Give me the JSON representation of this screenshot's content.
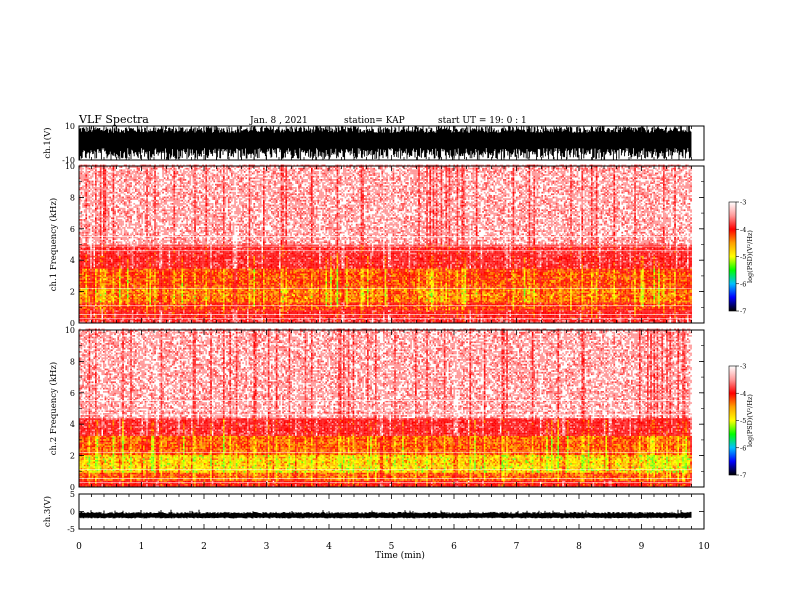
{
  "header": {
    "title": "VLF Spectra",
    "date": "Jan. 8 , 2021",
    "station": "station= KAP",
    "start": "start UT = 19: 0 : 1"
  },
  "colorbar": {
    "label": "log(PSD)(V²/Hz)",
    "ticks": [
      "-3",
      "-4",
      "-5",
      "-6",
      "-7"
    ],
    "colors": [
      "#ffffff",
      "#ff9a9a",
      "#ff0000",
      "#ffa000",
      "#ffff00",
      "#00ff00",
      "#00c0ff",
      "#0000ff",
      "#000000"
    ]
  },
  "chart_data": [
    {
      "type": "line",
      "name": "ch1-waveform",
      "ylabel": "ch.1(V)",
      "ylim": [
        -10,
        10
      ],
      "yticks": [
        "10",
        "-10"
      ],
      "x_range": [
        0,
        9.8
      ],
      "description_values": "dense broadband noise nearly filling ±10 V"
    },
    {
      "type": "heatmap",
      "name": "ch1-spectrogram",
      "ylabel": "ch.1 Frequency (kHz)",
      "ylim": [
        0,
        10
      ],
      "yticks": [
        "0",
        "2",
        "4",
        "6",
        "8",
        "10"
      ],
      "xlim": [
        0,
        9.8
      ],
      "bands": [
        {
          "from": 0.0,
          "to": 0.3,
          "level": -3.5
        },
        {
          "from": 0.3,
          "to": 0.8,
          "level": -3.7
        },
        {
          "from": 0.8,
          "to": 1.3,
          "level": -4.0
        },
        {
          "from": 1.3,
          "to": 2.2,
          "level": -4.3
        },
        {
          "from": 2.2,
          "to": 3.4,
          "level": -4.1
        },
        {
          "from": 3.4,
          "to": 4.9,
          "level": -3.6
        },
        {
          "from": 4.9,
          "to": 10.0,
          "level": -3.1
        }
      ]
    },
    {
      "type": "heatmap",
      "name": "ch2-spectrogram",
      "ylabel": "ch.2 Frequency (kHz)",
      "ylim": [
        0,
        10
      ],
      "yticks": [
        "0",
        "2",
        "4",
        "6",
        "8",
        "10"
      ],
      "xlim": [
        0,
        9.8
      ],
      "bands": [
        {
          "from": 0.0,
          "to": 0.4,
          "level": -3.8
        },
        {
          "from": 0.4,
          "to": 0.9,
          "level": -4.2
        },
        {
          "from": 0.9,
          "to": 2.0,
          "level": -4.6
        },
        {
          "from": 2.0,
          "to": 3.2,
          "level": -4.2
        },
        {
          "from": 3.2,
          "to": 4.3,
          "level": -3.6
        },
        {
          "from": 4.3,
          "to": 10.0,
          "level": -3.1
        }
      ]
    },
    {
      "type": "line",
      "name": "ch3-waveform",
      "ylabel": "ch.3(V)",
      "ylim": [
        -5,
        5
      ],
      "yticks": [
        "5",
        "0",
        "-5"
      ],
      "x_range": [
        0,
        9.8
      ],
      "description_values": "narrow band around -1 V"
    }
  ],
  "xaxis": {
    "label": "Time (min)",
    "ticks": [
      "0",
      "1",
      "2",
      "3",
      "4",
      "5",
      "6",
      "7",
      "8",
      "9",
      "10"
    ],
    "xlim": [
      0,
      10
    ]
  }
}
